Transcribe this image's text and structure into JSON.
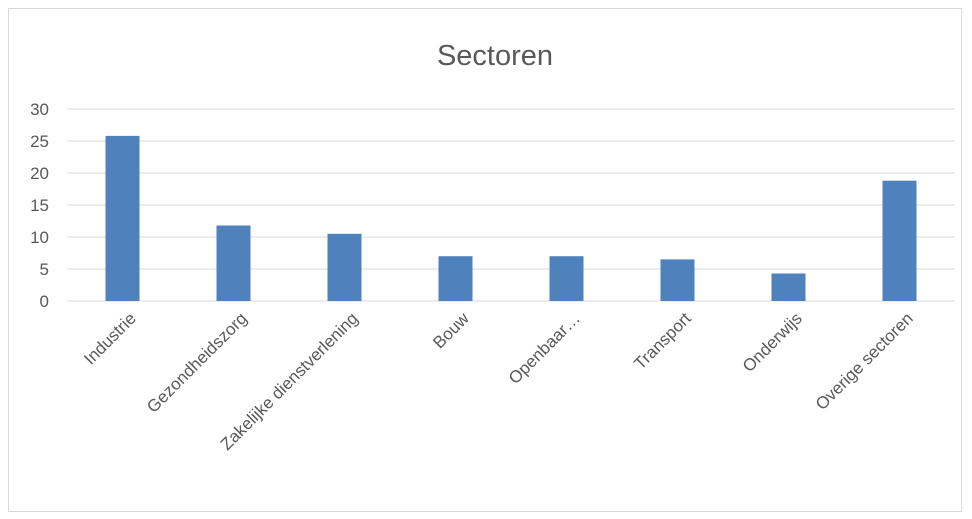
{
  "chart_data": {
    "type": "bar",
    "title": "Sectoren",
    "categories": [
      "Industrie",
      "Gezondheidszorg",
      "Zakelijke dienstverlening",
      "Bouw",
      "Openbaar…",
      "Transport",
      "Onderwijs",
      "Overige sectoren"
    ],
    "series": [
      {
        "values": [
          25.8,
          11.8,
          10.5,
          7.0,
          7.0,
          6.5,
          4.3,
          18.8
        ]
      }
    ],
    "ylim": [
      0,
      30
    ],
    "yticks": [
      0,
      5,
      10,
      15,
      20,
      25,
      30
    ],
    "xlabel": "",
    "ylabel": "",
    "grid": true,
    "legend": "none",
    "bar_color": "#4f81bd"
  }
}
